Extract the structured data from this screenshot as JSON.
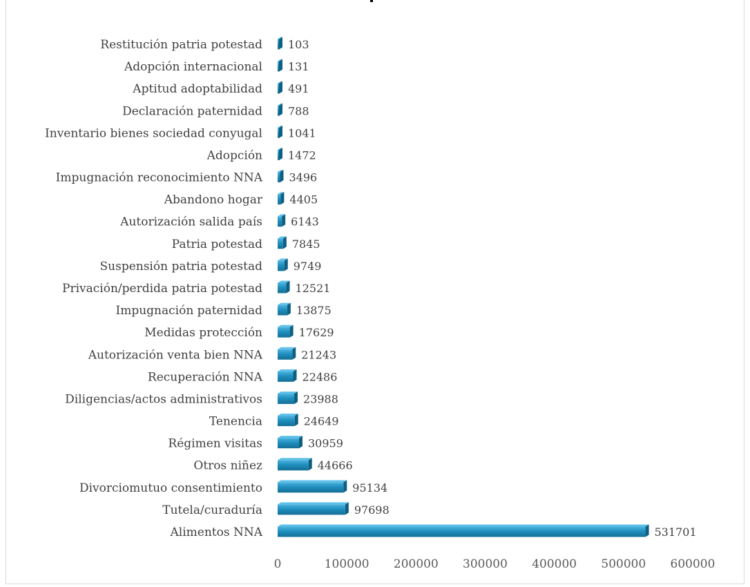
{
  "chart_data": {
    "type": "bar",
    "orientation": "horizontal",
    "categories": [
      "Restitución patria potestad",
      "Adopción internacional",
      "Aptitud adoptabilidad",
      "Declaración paternidad",
      "Inventario bienes sociedad conyugal",
      "Adopción",
      "Impugnación reconocimiento NNA",
      "Abandono hogar",
      "Autorización salida país",
      "Patria potestad",
      "Suspensión patria potestad",
      "Privación/perdida patria potestad",
      "Impugnación paternidad",
      "Medidas protección",
      "Autorización venta  bien NNA",
      "Recuperación NNA",
      "Diligencias/actos administrativos",
      "Tenencia",
      "Régimen visitas",
      "Otros niñez",
      "Divorciomutuo consentimiento",
      "Tutela/curaduría",
      "Alimentos NNA"
    ],
    "values": [
      103,
      131,
      491,
      788,
      1041,
      1472,
      3496,
      4405,
      6143,
      7845,
      9749,
      12521,
      13875,
      17629,
      21243,
      22486,
      23988,
      24649,
      30959,
      44666,
      95134,
      97698,
      531701
    ],
    "xticks": [
      "0",
      "100000",
      "200000",
      "300000",
      "400000",
      "500000",
      "600000"
    ],
    "xlim": [
      0,
      600000
    ],
    "grid": false,
    "legend": "none",
    "bar_color": "#1f8fbf"
  }
}
